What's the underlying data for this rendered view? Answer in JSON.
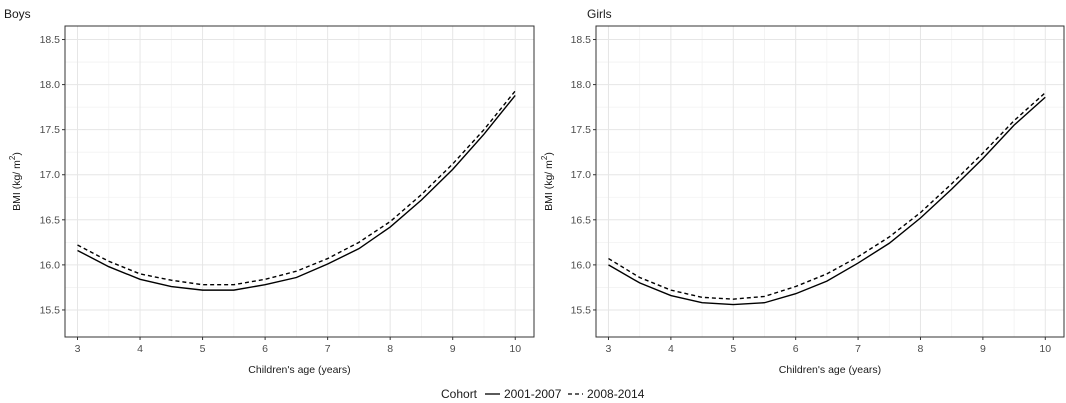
{
  "chart_data": [
    {
      "type": "line",
      "title": "Boys",
      "xlabel": "Children's age (years)",
      "ylabel_main": "BMI (kg/ m",
      "ylabel_sup": "2",
      "ylabel_close": ")",
      "xlim": [
        2.8,
        10.3
      ],
      "ylim": [
        15.2,
        18.65
      ],
      "xticks": [
        3,
        4,
        5,
        6,
        7,
        8,
        9,
        10
      ],
      "yticks": [
        15.5,
        16.0,
        16.5,
        17.0,
        17.5,
        18.0,
        18.5
      ],
      "grid": true,
      "x": [
        3,
        3.5,
        4,
        4.5,
        5,
        5.5,
        6,
        6.5,
        7,
        7.5,
        8,
        8.5,
        9,
        9.5,
        10
      ],
      "series": [
        {
          "name": "2001-2007",
          "dash": "solid",
          "color": "#000000",
          "values": [
            16.16,
            15.98,
            15.84,
            15.76,
            15.72,
            15.72,
            15.78,
            15.86,
            16.01,
            16.18,
            16.42,
            16.72,
            17.06,
            17.45,
            17.88
          ]
        },
        {
          "name": "2008-2014",
          "dash": "dashed",
          "color": "#000000",
          "values": [
            16.22,
            16.04,
            15.9,
            15.83,
            15.78,
            15.78,
            15.84,
            15.93,
            16.07,
            16.25,
            16.48,
            16.78,
            17.12,
            17.5,
            17.93
          ]
        }
      ]
    },
    {
      "type": "line",
      "title": "Girls",
      "xlabel": "Children's age (years)",
      "ylabel_main": "BMI (kg/ m",
      "ylabel_sup": "2",
      "ylabel_close": ")",
      "xlim": [
        2.8,
        10.3
      ],
      "ylim": [
        15.2,
        18.65
      ],
      "xticks": [
        3,
        4,
        5,
        6,
        7,
        8,
        9,
        10
      ],
      "yticks": [
        15.5,
        16.0,
        16.5,
        17.0,
        17.5,
        18.0,
        18.5
      ],
      "grid": true,
      "x": [
        3,
        3.5,
        4,
        4.5,
        5,
        5.5,
        6,
        6.5,
        7,
        7.5,
        8,
        8.5,
        9,
        9.5,
        10
      ],
      "series": [
        {
          "name": "2001-2007",
          "dash": "solid",
          "color": "#000000",
          "values": [
            16.0,
            15.8,
            15.66,
            15.58,
            15.56,
            15.58,
            15.68,
            15.82,
            16.02,
            16.24,
            16.52,
            16.84,
            17.18,
            17.55,
            17.86
          ]
        },
        {
          "name": "2008-2014",
          "dash": "dashed",
          "color": "#000000",
          "values": [
            16.07,
            15.86,
            15.72,
            15.64,
            15.62,
            15.65,
            15.76,
            15.9,
            16.09,
            16.31,
            16.58,
            16.9,
            17.24,
            17.6,
            17.91
          ]
        }
      ]
    }
  ],
  "legend": {
    "title": "Cohort",
    "placement": "bottom",
    "items": [
      {
        "label": "2001-2007",
        "dash": "solid"
      },
      {
        "label": "2008-2014",
        "dash": "dashed"
      }
    ]
  }
}
